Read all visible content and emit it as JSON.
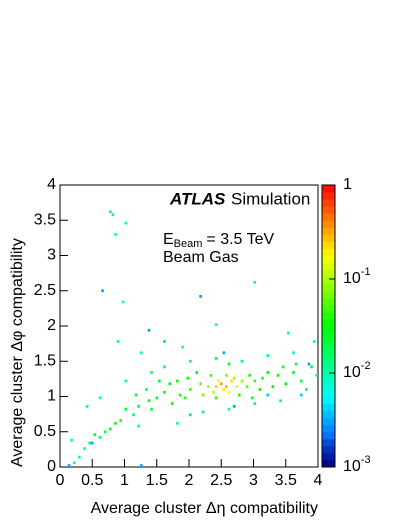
{
  "chart_data": {
    "type": "heatmap",
    "xlabel": "Average cluster Δη compatibility",
    "ylabel": "Average cluster Δφ compatibility",
    "annotations": {
      "brand": "ATLAS",
      "brand_suffix": "Simulation",
      "beam_symbol": "E",
      "beam_subscript": "Beam",
      "beam_value": "= 3.5 TeV",
      "beam_type": "Beam Gas"
    },
    "xlim": [
      0,
      4
    ],
    "ylim": [
      0,
      4
    ],
    "xticks": [
      0,
      0.5,
      1,
      1.5,
      2,
      2.5,
      3,
      3.5,
      4
    ],
    "yticks": [
      0,
      0.5,
      1,
      1.5,
      2,
      2.5,
      3,
      3.5,
      4
    ],
    "zlim": [
      0.001,
      1
    ],
    "zlog": true,
    "zticks": [
      {
        "value": 1,
        "label": "1"
      },
      {
        "value": 0.1,
        "label": "10",
        "exponent": "-1"
      },
      {
        "value": 0.01,
        "label": "10",
        "exponent": "-2"
      },
      {
        "value": 0.001,
        "label": "10",
        "exponent": "-3"
      }
    ],
    "bin_width": 0.04,
    "cells": [
      [
        2.4,
        1.12,
        0.25
      ],
      [
        2.48,
        1.16,
        0.35
      ],
      [
        2.56,
        1.12,
        0.3
      ],
      [
        2.64,
        1.2,
        0.22
      ],
      [
        2.52,
        1.08,
        0.2
      ],
      [
        2.44,
        1.2,
        0.15
      ],
      [
        2.6,
        1.04,
        0.18
      ],
      [
        2.72,
        1.12,
        0.16
      ],
      [
        2.36,
        1.04,
        0.12
      ],
      [
        2.68,
        1.24,
        0.1
      ],
      [
        2.8,
        1.2,
        0.09
      ],
      [
        2.28,
        1.12,
        0.1
      ],
      [
        2.2,
        1.0,
        0.07
      ],
      [
        2.88,
        1.12,
        0.06
      ],
      [
        3.0,
        1.2,
        0.05
      ],
      [
        2.16,
        1.16,
        0.06
      ],
      [
        2.0,
        1.08,
        0.05
      ],
      [
        1.92,
        0.96,
        0.04
      ],
      [
        3.12,
        1.24,
        0.04
      ],
      [
        3.2,
        1.32,
        0.03
      ],
      [
        3.36,
        1.28,
        0.035
      ],
      [
        3.48,
        1.16,
        0.03
      ],
      [
        3.6,
        1.32,
        0.025
      ],
      [
        3.72,
        1.2,
        0.02
      ],
      [
        3.88,
        1.4,
        0.02
      ],
      [
        3.96,
        1.28,
        0.015
      ],
      [
        1.8,
        1.2,
        0.03
      ],
      [
        1.72,
        0.88,
        0.025
      ],
      [
        1.6,
        1.04,
        0.03
      ],
      [
        1.48,
        0.96,
        0.02
      ],
      [
        1.4,
        0.8,
        0.02
      ],
      [
        1.32,
        1.08,
        0.015
      ],
      [
        1.2,
        0.84,
        0.02
      ],
      [
        1.12,
        0.72,
        0.015
      ],
      [
        1.0,
        0.8,
        0.02
      ],
      [
        0.92,
        0.64,
        0.04
      ],
      [
        0.84,
        0.6,
        0.03
      ],
      [
        0.76,
        0.52,
        0.025
      ],
      [
        0.68,
        0.48,
        0.02
      ],
      [
        0.6,
        0.4,
        0.015
      ],
      [
        0.52,
        0.44,
        0.02
      ],
      [
        0.44,
        0.32,
        0.015
      ],
      [
        0.36,
        0.24,
        0.012
      ],
      [
        0.28,
        0.12,
        0.01
      ],
      [
        0.2,
        0.04,
        0.01
      ],
      [
        1.6,
        1.4,
        0.015
      ],
      [
        2.0,
        1.48,
        0.015
      ],
      [
        2.4,
        1.52,
        0.02
      ],
      [
        2.8,
        1.48,
        0.015
      ],
      [
        3.2,
        1.56,
        0.012
      ],
      [
        3.6,
        1.6,
        0.01
      ],
      [
        2.6,
        1.44,
        0.03
      ],
      [
        1.4,
        1.32,
        0.012
      ],
      [
        1.0,
        1.2,
        0.012
      ],
      [
        2.2,
        0.76,
        0.015
      ],
      [
        2.6,
        0.8,
        0.012
      ],
      [
        3.0,
        0.88,
        0.015
      ],
      [
        3.4,
        0.92,
        0.012
      ],
      [
        1.8,
        0.6,
        0.01
      ],
      [
        1.2,
        0.56,
        0.012
      ],
      [
        0.64,
        2.48,
        0.003
      ],
      [
        1.36,
        1.92,
        0.003
      ],
      [
        2.16,
        2.4,
        0.003
      ],
      [
        2.52,
        1.6,
        0.003
      ],
      [
        1.6,
        1.76,
        0.004
      ],
      [
        3.84,
        1.44,
        0.003
      ],
      [
        3.72,
        1.0,
        0.004
      ],
      [
        2.68,
        0.84,
        0.003
      ],
      [
        2.0,
        0.72,
        0.004
      ],
      [
        0.48,
        0.32,
        0.003
      ],
      [
        0.12,
        0.0,
        0.003
      ],
      [
        1.24,
        0.0,
        0.003
      ],
      [
        3.2,
        1.0,
        0.004
      ],
      [
        0.76,
        3.6,
        0.012
      ],
      [
        0.8,
        3.56,
        0.01
      ],
      [
        1.0,
        3.44,
        0.008
      ],
      [
        0.84,
        3.28,
        0.01
      ],
      [
        0.96,
        2.32,
        0.008
      ],
      [
        3.0,
        2.6,
        0.01
      ],
      [
        0.88,
        1.76,
        0.01
      ],
      [
        1.24,
        1.6,
        0.008
      ],
      [
        0.6,
        0.96,
        0.01
      ],
      [
        0.4,
        0.84,
        0.01
      ],
      [
        0.16,
        0.36,
        0.01
      ],
      [
        2.4,
        2.0,
        0.008
      ],
      [
        3.52,
        1.88,
        0.01
      ],
      [
        3.92,
        1.76,
        0.008
      ],
      [
        1.88,
        1.68,
        0.01
      ],
      [
        2.32,
        1.28,
        0.05
      ],
      [
        2.56,
        1.28,
        0.07
      ],
      [
        2.4,
        0.96,
        0.04
      ],
      [
        2.76,
        1.0,
        0.04
      ],
      [
        2.92,
        1.28,
        0.04
      ],
      [
        3.08,
        1.08,
        0.03
      ],
      [
        3.28,
        1.12,
        0.03
      ],
      [
        1.96,
        1.24,
        0.03
      ],
      [
        1.84,
        1.0,
        0.04
      ],
      [
        1.68,
        1.16,
        0.025
      ],
      [
        1.52,
        1.2,
        0.02
      ],
      [
        1.36,
        0.92,
        0.025
      ],
      [
        1.16,
        1.0,
        0.02
      ],
      [
        3.44,
        1.4,
        0.02
      ],
      [
        3.8,
        1.08,
        0.015
      ],
      [
        3.64,
        1.44,
        0.02
      ],
      [
        2.1,
        1.32,
        0.025
      ],
      [
        2.96,
        0.96,
        0.025
      ]
    ]
  }
}
